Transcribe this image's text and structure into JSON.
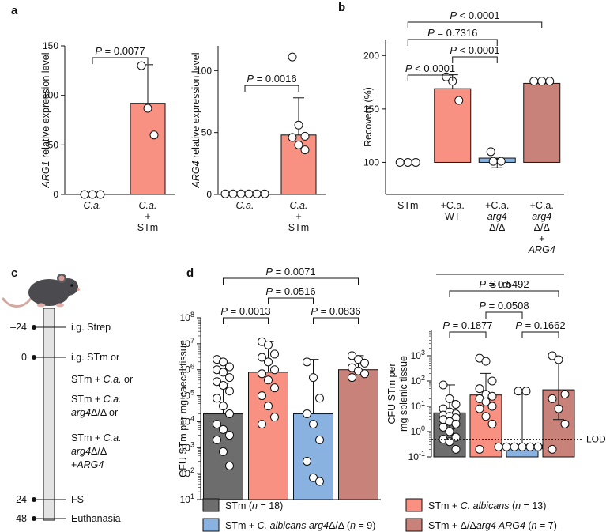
{
  "colors": {
    "salmon": "#f99183",
    "gray": "#6d6d6d",
    "blue": "#8ab2e0",
    "rose": "#c98279",
    "timeline": "#e3e3e3"
  },
  "panel_labels": [
    "a",
    "b",
    "c",
    "d"
  ],
  "chart_data": [
    {
      "id": "a1",
      "type": "bar",
      "ylabel_italic": "ARG1",
      "ylabel_rest": " relative expression level",
      "ylim": [
        0,
        150
      ],
      "yticks": [
        "0",
        "50",
        "100",
        "150"
      ],
      "categories": [
        {
          "lines": [
            "C.a."
          ],
          "italic": [
            true
          ]
        },
        {
          "lines": [
            "C.a.",
            "+",
            "STm"
          ],
          "italic": [
            true,
            false,
            false
          ]
        }
      ],
      "values": [
        0,
        92
      ],
      "err_top": [
        null,
        131
      ],
      "points": [
        [
          0,
          0,
          0
        ],
        [
          130,
          87,
          60
        ]
      ],
      "bar_colors": [
        "none",
        "#f99183"
      ],
      "comparisons": [
        {
          "i": 0,
          "j": 1,
          "label": "P = 0.0077",
          "y": 138
        }
      ]
    },
    {
      "id": "a2",
      "type": "bar",
      "ylabel_italic": "ARG4",
      "ylabel_rest": " relative expression level",
      "ylim": [
        0,
        120
      ],
      "yticks": [
        "0",
        "50",
        "100"
      ],
      "categories": [
        {
          "lines": [
            "C.a."
          ],
          "italic": [
            true
          ]
        },
        {
          "lines": [
            "C.a.",
            "+",
            "STm"
          ],
          "italic": [
            true,
            false,
            false
          ]
        }
      ],
      "values": [
        0.5,
        48
      ],
      "err_top": [
        null,
        78
      ],
      "points": [
        [
          0.5,
          0.5,
          0.5,
          0.5,
          0.5,
          0.5
        ],
        [
          111,
          56,
          47,
          46,
          40,
          36
        ]
      ],
      "bar_colors": [
        "none",
        "#f99183"
      ],
      "comparisons": [
        {
          "i": 0,
          "j": 1,
          "label": "P = 0.0016",
          "y": 88
        }
      ]
    },
    {
      "id": "b",
      "type": "bar",
      "ylabel": "Recovery (%)",
      "ylim": [
        70,
        215
      ],
      "ybase": 100,
      "yticks": [
        "100",
        "150",
        "200"
      ],
      "categories": [
        {
          "lines": [
            "STm"
          ],
          "italic": [
            false
          ]
        },
        {
          "lines": [
            "+C.a.",
            "WT"
          ],
          "italic": [
            false,
            false
          ]
        },
        {
          "lines": [
            "+C.a.",
            "arg4",
            "Δ/Δ"
          ],
          "italic": [
            false,
            true,
            false
          ]
        },
        {
          "lines": [
            "+C.a.",
            "arg4",
            "Δ/Δ",
            "+",
            "ARG4"
          ],
          "italic": [
            false,
            true,
            false,
            false,
            true
          ]
        }
      ],
      "values": [
        100,
        169,
        104,
        174
      ],
      "err_top": [
        null,
        182,
        null,
        null
      ],
      "err_bottom": [
        null,
        null,
        95,
        null
      ],
      "points": [
        [
          100,
          100,
          100
        ],
        [
          180,
          176,
          158
        ],
        [
          110,
          101,
          101
        ],
        [
          176,
          176,
          176
        ]
      ],
      "bar_colors": [
        "#6d6d6d",
        "#f99183",
        "#8ab2e0",
        "#c98279"
      ],
      "group_label": "STm",
      "comparisons": [
        {
          "i": 0,
          "j": 1,
          "label": "P < 0.0001",
          "y": 192
        },
        {
          "i": 1,
          "j": 2,
          "label": "P < 0.0001",
          "y": 212
        },
        {
          "i": 0,
          "j": 2,
          "label": "P = 0.7316",
          "y": 232
        },
        {
          "i": 0,
          "j": 3,
          "label": "P < 0.0001",
          "y": 252
        }
      ]
    },
    {
      "id": "d1",
      "type": "bar",
      "yscale": "log",
      "ylabel": "CFU STm per mg caecal tissue",
      "ylim": [
        10,
        100000000
      ],
      "yticks": [
        "10^1",
        "10^2",
        "10^3",
        "10^4",
        "10^5",
        "10^6",
        "10^7",
        "10^8"
      ],
      "values": [
        20000,
        800000,
        20000,
        1000000
      ],
      "err_top": [
        300000,
        12000000,
        2500000,
        3500000
      ],
      "points": [
        [
          2500000,
          2000000,
          1300000,
          1000000,
          800000,
          500000,
          350000,
          250000,
          150000,
          80000,
          40000,
          20000,
          8000,
          5000,
          3000,
          2000,
          700,
          200
        ],
        [
          12000000,
          9000000,
          4000000,
          3000000,
          2000000,
          1000000,
          700000,
          400000,
          200000,
          100000,
          40000,
          15000,
          8000
        ],
        [
          2000000,
          500000,
          80000,
          20000,
          8000,
          2000,
          300,
          70,
          50
        ],
        [
          3500000,
          2500000,
          1800000,
          1200000,
          900000,
          700000,
          500000
        ]
      ],
      "bar_colors": [
        "#6d6d6d",
        "#f99183",
        "#8ab2e0",
        "#c98279"
      ],
      "comparisons": [
        {
          "i": 0,
          "j": 1,
          "label": "P = 0.0013",
          "y": 100000000
        },
        {
          "i": 2,
          "j": 3,
          "label": "P = 0.0836",
          "y": 100000000
        },
        {
          "i": 1,
          "j": 2,
          "label": "P = 0.0516",
          "y": 4000000000
        },
        {
          "i": 0,
          "j": 3,
          "label": "P = 0.0071",
          "y": 100000000000
        }
      ]
    },
    {
      "id": "d2",
      "type": "bar",
      "yscale": "log",
      "ylabel_lines": [
        "CFU STm per",
        "mg splenic tissue"
      ],
      "ylim": [
        0.1,
        10000
      ],
      "yticks": [
        "10^-1",
        "10^0",
        "10^1",
        "10^2",
        "10^3"
      ],
      "values": [
        5.5,
        28,
        0.3,
        45
      ],
      "err_top": [
        70,
        200,
        30,
        900
      ],
      "err_bottom": [
        1.3,
        null,
        null,
        3
      ],
      "lod": {
        "value": 0.5,
        "label": "LOD"
      },
      "points": [
        [
          70,
          20,
          12,
          8,
          6,
          5,
          4.5,
          4,
          3.5,
          3,
          2.5,
          2,
          1.5,
          1,
          0.6,
          0.5,
          0.4,
          0.2
        ],
        [
          800,
          600,
          100,
          50,
          30,
          25,
          20,
          15,
          10,
          8,
          4,
          2,
          0.2
        ],
        [
          40,
          40,
          0.25,
          0.25,
          0.25,
          0.25,
          0.25,
          0.25,
          0.25
        ],
        [
          1000,
          700,
          30,
          20,
          8,
          2,
          0.2
        ]
      ],
      "bar_colors": [
        "#6d6d6d",
        "#f99183",
        "#8ab2e0",
        "#c98279"
      ],
      "comparisons": [
        {
          "i": 0,
          "j": 1,
          "label": "P = 0.1877",
          "y": 5000
        },
        {
          "i": 2,
          "j": 3,
          "label": "P = 0.1662",
          "y": 5000
        },
        {
          "i": 1,
          "j": 2,
          "label": "P = 0.0508",
          "y": 120000
        },
        {
          "i": 0,
          "j": 3,
          "label": "P = 0.5492",
          "y": 2500000
        }
      ]
    }
  ],
  "timeline": {
    "ticks": [
      {
        "time": "–24",
        "label": "i.g. Strep"
      },
      {
        "time": "0",
        "label": "i.g. STm or"
      },
      {
        "time": "24",
        "label": "FS"
      },
      {
        "time": "48",
        "label": "Euthanasia"
      }
    ],
    "extra_labels": [
      [
        {
          "t": "STm + ",
          "i": false
        },
        {
          "t": "C.a.",
          "i": true
        },
        {
          "t": " or",
          "i": false
        }
      ],
      [
        {
          "t": "STm + ",
          "i": false
        },
        {
          "t": "C.a.",
          "i": true
        }
      ],
      [
        {
          "t": "arg4",
          "i": true
        },
        {
          "t": "Δ/Δ or",
          "i": false
        }
      ],
      [
        {
          "t": "STm + ",
          "i": false
        },
        {
          "t": "C.a.",
          "i": true
        }
      ],
      [
        {
          "t": "arg4",
          "i": true
        },
        {
          "t": "Δ/Δ",
          "i": false
        }
      ],
      [
        {
          "t": "+",
          "i": false
        },
        {
          "t": "ARG4",
          "i": true
        }
      ]
    ]
  },
  "legend": [
    {
      "color": "#6d6d6d",
      "parts": [
        {
          "t": "STm (",
          "i": false
        },
        {
          "t": "n",
          "i": true
        },
        {
          "t": " = 18)",
          "i": false
        }
      ]
    },
    {
      "color": "#f99183",
      "parts": [
        {
          "t": "STm + ",
          "i": false
        },
        {
          "t": "C. albicans",
          "i": true
        },
        {
          "t": " (",
          "i": false
        },
        {
          "t": "n",
          "i": true
        },
        {
          "t": " = 13)",
          "i": false
        }
      ]
    },
    {
      "color": "#8ab2e0",
      "parts": [
        {
          "t": "STm + ",
          "i": false
        },
        {
          "t": "C. albicans arg4",
          "i": true
        },
        {
          "t": "Δ/Δ (",
          "i": false
        },
        {
          "t": "n",
          "i": true
        },
        {
          "t": " = 9)",
          "i": false
        }
      ]
    },
    {
      "color": "#c98279",
      "parts": [
        {
          "t": "STm + ",
          "i": false
        },
        {
          "t": "Δ/Δ",
          "i": false
        },
        {
          "t": "arg4 ARG4",
          "i": true
        },
        {
          "t": " (",
          "i": false
        },
        {
          "t": "n",
          "i": true
        },
        {
          "t": " = 7)",
          "i": false
        }
      ]
    }
  ]
}
